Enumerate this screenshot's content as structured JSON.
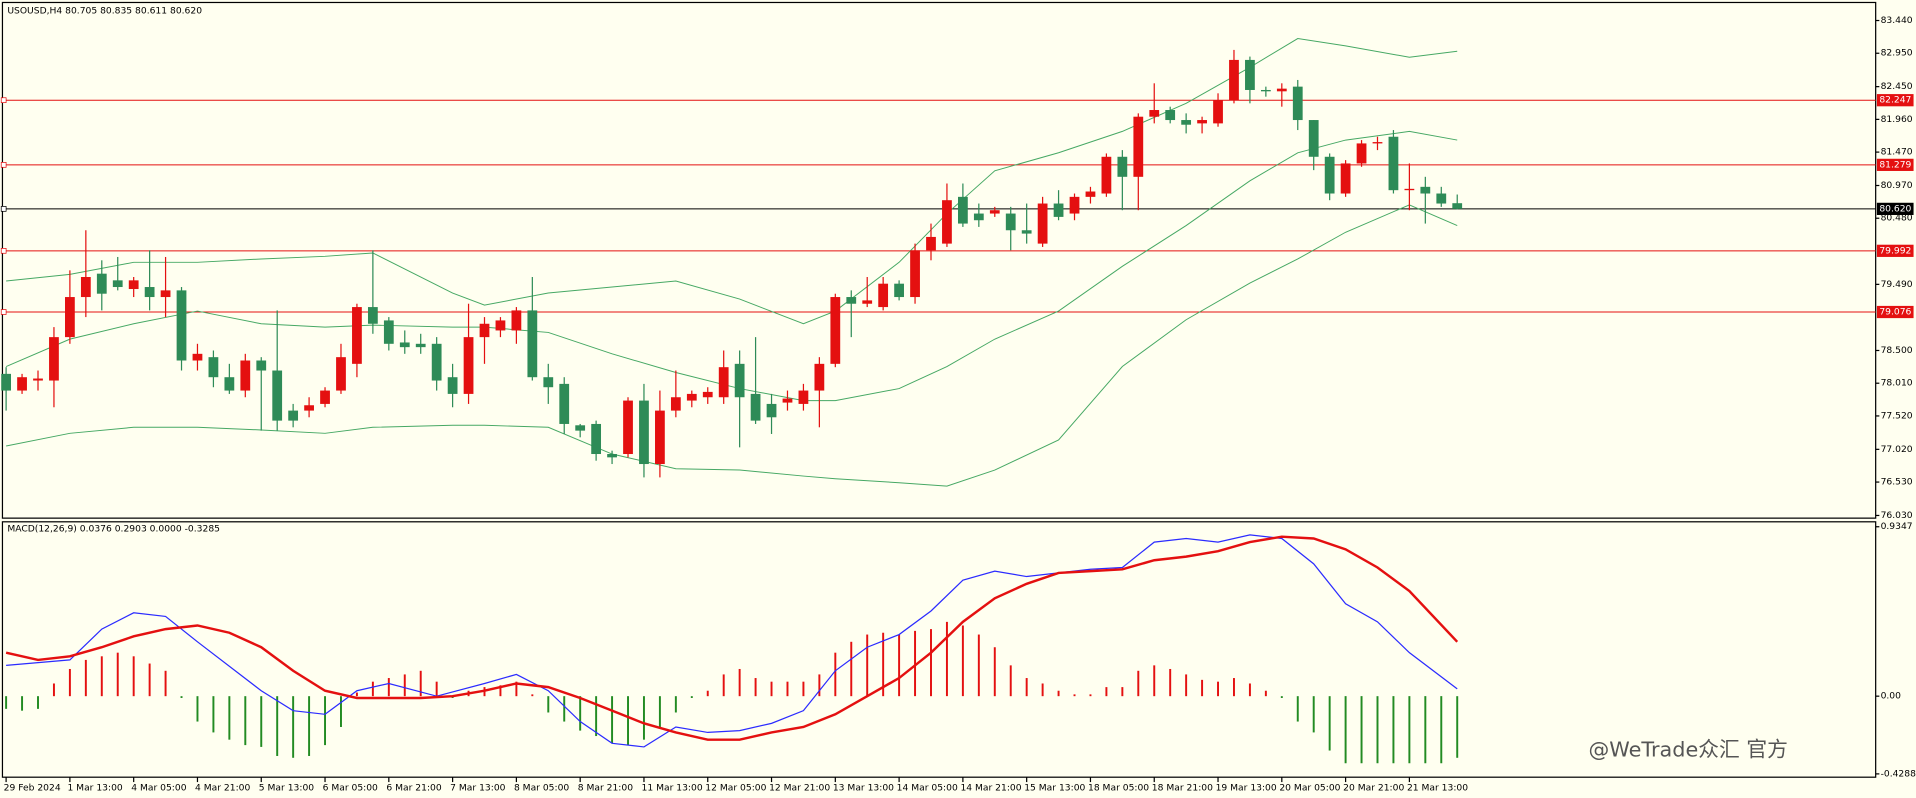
{
  "chart_data": [
    {
      "type": "candlestick",
      "header": "USOUSD,H4  80.705 80.835 80.611 80.620",
      "categories": [
        "29 Feb 2024",
        null,
        null,
        null,
        "1 Mar 13:00",
        null,
        null,
        null,
        "4 Mar 05:00",
        null,
        null,
        null,
        "4 Mar 21:00",
        null,
        null,
        null,
        "5 Mar 13:00",
        null,
        null,
        null,
        "6 Mar 05:00",
        null,
        null,
        null,
        "6 Mar 21:00",
        null,
        null,
        null,
        "7 Mar 13:00",
        null,
        null,
        null,
        "8 Mar 05:00",
        null,
        null,
        null,
        "8 Mar 21:00",
        null,
        null,
        null,
        "11 Mar 13:00",
        null,
        null,
        null,
        "12 Mar 05:00",
        null,
        null,
        null,
        "12 Mar 21:00",
        null,
        null,
        null,
        "13 Mar 13:00",
        null,
        null,
        null,
        "14 Mar 05:00",
        null,
        null,
        null,
        "14 Mar 21:00",
        null,
        null,
        null,
        "15 Mar 13:00",
        null,
        null,
        null,
        "18 Mar 05:00",
        null,
        null,
        null,
        "18 Mar 21:00",
        null,
        null,
        null,
        "19 Mar 13:00",
        null,
        null,
        null,
        "20 Mar 05:00",
        null,
        null,
        null,
        "20 Mar 21:00",
        null,
        null,
        null,
        "21 Mar 13:00",
        null,
        null,
        null
      ],
      "open": [
        78.15,
        77.9,
        78.05,
        78.05,
        78.7,
        79.3,
        79.65,
        79.55,
        79.42,
        79.45,
        79.3,
        79.4,
        78.35,
        78.4,
        78.1,
        77.9,
        78.35,
        78.2,
        77.6,
        77.6,
        77.7,
        77.9,
        78.3,
        79.15,
        78.95,
        78.62,
        78.6,
        78.6,
        78.1,
        77.85,
        78.7,
        78.8,
        78.8,
        79.1,
        78.1,
        78.0,
        77.38,
        77.4,
        76.95,
        76.95,
        77.75,
        76.8,
        77.6,
        77.75,
        77.8,
        77.8,
        78.3,
        77.85,
        77.7,
        77.72,
        77.7,
        77.9,
        78.3,
        79.3,
        79.2,
        79.15,
        79.5,
        79.3,
        80.0,
        80.1,
        80.8,
        80.55,
        80.55,
        80.55,
        80.3,
        80.1,
        80.7,
        80.55,
        80.8,
        80.85,
        81.4,
        81.1,
        82.0,
        82.1,
        81.95,
        81.9,
        81.9,
        82.25,
        82.85,
        82.4,
        82.38,
        82.45,
        81.95,
        81.4,
        80.85,
        81.3,
        81.6,
        81.7,
        80.9,
        80.95,
        80.85,
        80.705
      ],
      "high": [
        78.25,
        78.15,
        78.2,
        78.85,
        79.7,
        80.3,
        79.85,
        79.9,
        79.6,
        80.0,
        79.9,
        79.45,
        78.6,
        78.5,
        78.3,
        78.45,
        78.4,
        79.1,
        77.7,
        77.8,
        77.95,
        78.6,
        79.2,
        80.0,
        79.0,
        78.8,
        78.75,
        78.7,
        78.3,
        79.2,
        79.0,
        79.0,
        79.15,
        79.6,
        78.3,
        78.1,
        77.4,
        77.45,
        77.0,
        77.8,
        78.0,
        77.9,
        78.2,
        77.9,
        77.95,
        78.5,
        78.5,
        78.7,
        77.85,
        77.9,
        78.0,
        78.4,
        79.35,
        79.4,
        79.6,
        79.6,
        79.55,
        80.1,
        80.4,
        81.0,
        81.0,
        80.7,
        80.65,
        80.65,
        80.7,
        80.8,
        80.9,
        80.85,
        80.95,
        81.45,
        81.5,
        82.05,
        82.5,
        82.15,
        82.05,
        82.0,
        82.35,
        83.0,
        82.9,
        82.45,
        82.5,
        82.55,
        81.95,
        81.45,
        81.35,
        81.65,
        81.7,
        81.8,
        81.3,
        81.1,
        80.95,
        80.835
      ],
      "low": [
        77.6,
        77.85,
        77.9,
        77.65,
        78.6,
        79.0,
        79.1,
        79.4,
        79.3,
        79.1,
        79.0,
        78.2,
        78.2,
        77.95,
        77.85,
        77.8,
        77.3,
        77.3,
        77.35,
        77.5,
        77.65,
        77.85,
        78.1,
        78.75,
        78.5,
        78.45,
        78.45,
        77.9,
        77.65,
        77.7,
        78.3,
        78.7,
        78.6,
        78.05,
        77.7,
        77.25,
        77.2,
        76.85,
        76.8,
        76.9,
        76.6,
        76.6,
        77.5,
        77.65,
        77.7,
        77.7,
        77.05,
        77.4,
        77.25,
        77.6,
        77.6,
        77.35,
        78.25,
        78.7,
        79.15,
        79.1,
        79.25,
        79.2,
        79.85,
        80.05,
        80.35,
        80.35,
        80.5,
        80.0,
        80.1,
        80.05,
        80.45,
        80.45,
        80.7,
        80.8,
        80.6,
        80.6,
        81.9,
        81.9,
        81.75,
        81.75,
        81.85,
        82.2,
        82.2,
        82.3,
        82.15,
        81.8,
        81.2,
        80.75,
        80.8,
        81.25,
        81.5,
        80.85,
        80.6,
        80.4,
        80.65,
        80.611
      ],
      "close": [
        77.9,
        78.1,
        78.08,
        78.7,
        79.3,
        79.6,
        79.35,
        79.45,
        79.55,
        79.3,
        79.4,
        78.35,
        78.45,
        78.1,
        77.9,
        78.35,
        78.2,
        77.45,
        77.45,
        77.68,
        77.9,
        78.4,
        79.15,
        78.9,
        78.6,
        78.55,
        78.55,
        78.05,
        77.85,
        78.7,
        78.9,
        78.95,
        79.1,
        78.1,
        77.95,
        77.4,
        77.3,
        76.95,
        76.9,
        77.75,
        76.8,
        77.6,
        77.8,
        77.85,
        77.88,
        78.25,
        77.8,
        77.45,
        77.5,
        77.78,
        77.9,
        78.3,
        79.3,
        79.2,
        79.25,
        79.5,
        79.3,
        80.0,
        80.2,
        80.75,
        80.4,
        80.45,
        80.6,
        80.3,
        80.25,
        80.7,
        80.5,
        80.8,
        80.88,
        81.4,
        81.1,
        82.0,
        82.1,
        81.95,
        81.88,
        81.95,
        82.25,
        82.85,
        82.4,
        82.38,
        82.42,
        81.95,
        81.4,
        80.85,
        81.3,
        81.6,
        81.62,
        80.9,
        80.92,
        80.85,
        80.7,
        80.62
      ],
      "up_color": "#e41010",
      "down_color": "#2e8b57",
      "series": [
        {
          "color": "#46a864",
          "x": [
            0,
            4,
            8,
            12,
            16,
            20,
            23,
            28,
            30,
            34,
            38,
            42,
            46,
            50,
            52,
            56,
            59,
            62,
            66,
            70,
            74,
            78,
            81,
            84,
            88,
            91
          ],
          "values": [
            79.54,
            79.64,
            79.82,
            79.82,
            79.87,
            79.91,
            79.96,
            79.36,
            79.18,
            79.36,
            79.45,
            79.54,
            79.27,
            78.9,
            79.09,
            79.82,
            80.55,
            81.19,
            81.46,
            81.78,
            82.2,
            82.74,
            83.17,
            83.06,
            82.89,
            82.98
          ]
        },
        {
          "color": "#46a864",
          "x": [
            0,
            4,
            8,
            12,
            16,
            20,
            23,
            28,
            30,
            34,
            38,
            42,
            46,
            50,
            52,
            56,
            59,
            62,
            66,
            70,
            74,
            78,
            81,
            84,
            88,
            91
          ],
          "values": [
            78.26,
            78.67,
            78.9,
            79.09,
            78.9,
            78.85,
            78.88,
            78.85,
            78.85,
            78.77,
            78.45,
            78.17,
            77.93,
            77.75,
            77.75,
            77.93,
            78.26,
            78.67,
            79.09,
            79.76,
            80.37,
            81.04,
            81.46,
            81.65,
            81.78,
            81.65
          ]
        },
        {
          "color": "#46a864",
          "x": [
            0,
            4,
            8,
            12,
            16,
            20,
            23,
            28,
            30,
            34,
            38,
            42,
            46,
            50,
            52,
            56,
            59,
            62,
            66,
            70,
            74,
            78,
            81,
            84,
            88,
            91
          ],
          "values": [
            77.07,
            77.26,
            77.35,
            77.35,
            77.31,
            77.26,
            77.35,
            77.38,
            77.38,
            77.35,
            76.95,
            76.73,
            76.71,
            76.62,
            76.58,
            76.52,
            76.47,
            76.71,
            77.16,
            78.26,
            78.96,
            79.51,
            79.87,
            80.27,
            80.68,
            80.37
          ]
        }
      ],
      "levels": [
        {
          "value": 82.247,
          "color": "#e41010"
        },
        {
          "value": 81.279,
          "color": "#e41010"
        },
        {
          "value": 80.62,
          "label": "80.620",
          "color": "#000000"
        },
        {
          "value": 79.992,
          "color": "#e41010"
        },
        {
          "value": 79.076,
          "color": "#e41010"
        }
      ],
      "ylim": [
        75.99,
        83.71
      ],
      "yticks": [
        {
          "value": 83.44,
          "label": "83.440"
        },
        {
          "value": 82.95,
          "label": "82.950"
        },
        {
          "value": 82.45,
          "label": "82.450"
        },
        {
          "value": 81.96,
          "label": "81.960"
        },
        {
          "value": 81.47,
          "label": "81.470"
        },
        {
          "value": 80.97,
          "label": "80.970"
        },
        {
          "value": 80.48,
          "label": "80.480"
        },
        {
          "value": 79.49,
          "label": "79.490"
        },
        {
          "value": 78.5,
          "label": "78.500"
        },
        {
          "value": 78.01,
          "label": "78.010"
        },
        {
          "value": 77.52,
          "label": "77.520"
        },
        {
          "value": 77.02,
          "label": "77.020"
        },
        {
          "value": 76.53,
          "label": "76.530"
        },
        {
          "value": 76.03,
          "label": "76.030"
        }
      ],
      "watermark": "@WeTrade众汇 官方"
    },
    {
      "type": "macd",
      "header": "MACD(12,26,9) 0.0376 0.2903 0.0000 -0.3285",
      "values": [
        -0.07,
        -0.08,
        -0.07,
        0.07,
        0.15,
        0.2,
        0.22,
        0.24,
        0.22,
        0.18,
        0.14,
        -0.01,
        -0.14,
        -0.2,
        -0.24,
        -0.27,
        -0.28,
        -0.33,
        -0.34,
        -0.33,
        -0.27,
        -0.17,
        0.02,
        0.08,
        0.1,
        0.12,
        0.14,
        0.08,
        -0.01,
        0.03,
        0.05,
        0.06,
        0.08,
        0.01,
        -0.09,
        -0.14,
        -0.19,
        -0.22,
        -0.26,
        -0.27,
        -0.24,
        -0.18,
        -0.09,
        -0.01,
        0.03,
        0.12,
        0.15,
        0.1,
        0.08,
        0.08,
        0.08,
        0.12,
        0.24,
        0.3,
        0.34,
        0.35,
        0.34,
        0.36,
        0.37,
        0.41,
        0.39,
        0.34,
        0.27,
        0.17,
        0.1,
        0.07,
        0.03,
        0.01,
        0.01,
        0.05,
        0.05,
        0.14,
        0.17,
        0.15,
        0.12,
        0.09,
        0.08,
        0.1,
        0.07,
        0.03,
        -0.01,
        -0.14,
        -0.2,
        -0.3,
        -0.37,
        -0.37,
        -0.37,
        -0.37,
        -0.37,
        -0.37,
        -0.37,
        -0.34
      ],
      "up_color": "#e41010",
      "down_color": "#228b22",
      "series": [
        {
          "color": "#2b2bff",
          "width": 1,
          "x": [
            0,
            4,
            6,
            8,
            10,
            12,
            16,
            18,
            20,
            22,
            24,
            27,
            30,
            32,
            34,
            36,
            38,
            40,
            42,
            44,
            46,
            48,
            50,
            52,
            54,
            56,
            58,
            60,
            62,
            64,
            66,
            68,
            70,
            72,
            74,
            76,
            78,
            80,
            82,
            84,
            86,
            88,
            91
          ],
          "values": [
            0.17,
            0.2,
            0.37,
            0.46,
            0.44,
            0.3,
            0.03,
            -0.08,
            -0.1,
            0.03,
            0.07,
            0.0,
            0.07,
            0.12,
            0.03,
            -0.14,
            -0.26,
            -0.28,
            -0.17,
            -0.2,
            -0.19,
            -0.15,
            -0.08,
            0.14,
            0.27,
            0.34,
            0.47,
            0.64,
            0.69,
            0.66,
            0.68,
            0.7,
            0.71,
            0.85,
            0.87,
            0.85,
            0.89,
            0.87,
            0.73,
            0.51,
            0.41,
            0.24,
            0.04
          ]
        },
        {
          "color": "#e41010",
          "width": 2,
          "x": [
            0,
            2,
            4,
            6,
            8,
            10,
            12,
            14,
            16,
            18,
            20,
            22,
            24,
            26,
            28,
            30,
            32,
            34,
            36,
            38,
            40,
            42,
            44,
            46,
            48,
            50,
            52,
            54,
            56,
            58,
            60,
            62,
            64,
            66,
            68,
            70,
            72,
            74,
            76,
            78,
            80,
            82,
            84,
            86,
            88,
            91
          ],
          "values": [
            0.24,
            0.2,
            0.22,
            0.27,
            0.33,
            0.37,
            0.39,
            0.35,
            0.27,
            0.14,
            0.03,
            -0.01,
            -0.01,
            -0.01,
            0.0,
            0.03,
            0.07,
            0.05,
            -0.01,
            -0.08,
            -0.15,
            -0.2,
            -0.24,
            -0.24,
            -0.2,
            -0.17,
            -0.1,
            0.0,
            0.1,
            0.24,
            0.41,
            0.54,
            0.62,
            0.68,
            0.69,
            0.7,
            0.75,
            0.77,
            0.8,
            0.85,
            0.88,
            0.87,
            0.81,
            0.71,
            0.58,
            0.3
          ]
        }
      ],
      "ylim": [
        -0.447,
        0.962
      ],
      "yticks": [
        0.9347,
        {
          "value": 0,
          "label": "0.00"
        },
        -0.4288
      ]
    }
  ]
}
